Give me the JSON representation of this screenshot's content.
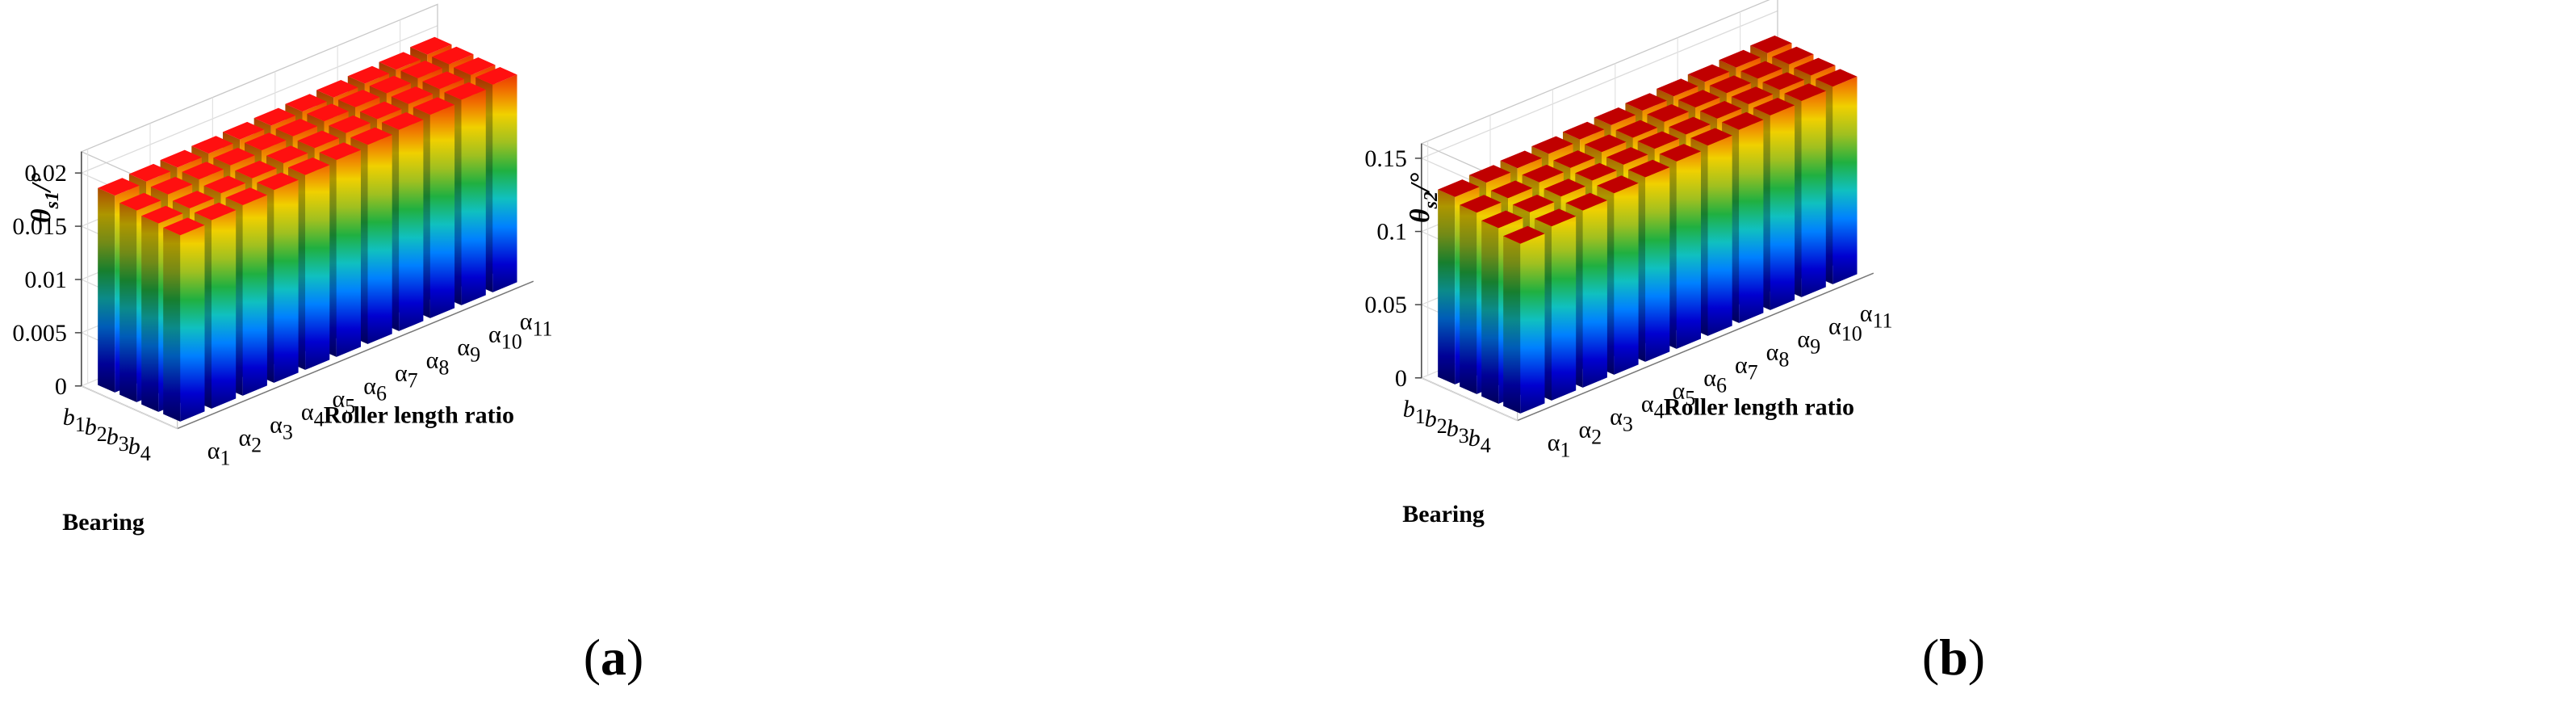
{
  "chart_data": [
    {
      "panel": "a",
      "panel_label_open": "(",
      "panel_label_letter": "a",
      "panel_label_close": ")",
      "type": "bar3d",
      "ylabel_symbol": "θ",
      "ylabel_subscript": "s1",
      "ylabel_unit": "/°",
      "xlabel": "Roller length ratio",
      "zlabel": "Bearing",
      "roller_ratio_symbol": "α",
      "bearing_symbol": "b",
      "categories_alpha": [
        "1",
        "2",
        "3",
        "4",
        "5",
        "6",
        "7",
        "8",
        "9",
        "10",
        "11"
      ],
      "categories_bearing": [
        "1",
        "2",
        "3",
        "4"
      ],
      "yticks": [
        "0",
        "0.005",
        "0.01",
        "0.015",
        "0.02"
      ],
      "ylim": [
        0,
        0.022
      ],
      "grid": true,
      "colormap": "jet",
      "values": [
        [
          0.0185,
          0.0186,
          0.0187,
          0.0188,
          0.0189,
          0.019,
          0.0191,
          0.0192,
          0.0193,
          0.0194,
          0.0196
        ],
        [
          0.018,
          0.0183,
          0.0185,
          0.0186,
          0.0188,
          0.0189,
          0.0191,
          0.0192,
          0.0193,
          0.0195,
          0.0196
        ],
        [
          0.0177,
          0.0179,
          0.0181,
          0.0183,
          0.0185,
          0.0187,
          0.0189,
          0.019,
          0.0192,
          0.0194,
          0.0195
        ],
        [
          0.0175,
          0.0177,
          0.0179,
          0.0181,
          0.0183,
          0.0185,
          0.0187,
          0.0189,
          0.0191,
          0.0193,
          0.0195
        ]
      ]
    },
    {
      "panel": "b",
      "panel_label_open": "(",
      "panel_label_letter": "b",
      "panel_label_close": ")",
      "type": "bar3d",
      "ylabel_symbol": "θ",
      "ylabel_subscript": "s2",
      "ylabel_unit": "/°",
      "xlabel": "Roller length ratio",
      "zlabel": "Bearing",
      "roller_ratio_symbol": "α",
      "bearing_symbol": "b",
      "categories_alpha": [
        "1",
        "2",
        "3",
        "4",
        "5",
        "6",
        "7",
        "8",
        "9",
        "10",
        "11"
      ],
      "categories_bearing": [
        "1",
        "2",
        "3",
        "4"
      ],
      "yticks": [
        "0",
        "0.05",
        "0.1",
        "0.15"
      ],
      "ylim": [
        0,
        0.16
      ],
      "grid": true,
      "colormap": "jet",
      "values": [
        [
          0.128,
          0.129,
          0.13,
          0.131,
          0.132,
          0.133,
          0.134,
          0.135,
          0.136,
          0.137,
          0.138
        ],
        [
          0.124,
          0.125,
          0.127,
          0.128,
          0.13,
          0.131,
          0.133,
          0.134,
          0.135,
          0.136,
          0.137
        ],
        [
          0.12,
          0.122,
          0.124,
          0.126,
          0.128,
          0.13,
          0.131,
          0.133,
          0.134,
          0.135,
          0.136
        ],
        [
          0.116,
          0.119,
          0.121,
          0.124,
          0.126,
          0.128,
          0.13,
          0.132,
          0.133,
          0.134,
          0.135
        ]
      ]
    }
  ]
}
